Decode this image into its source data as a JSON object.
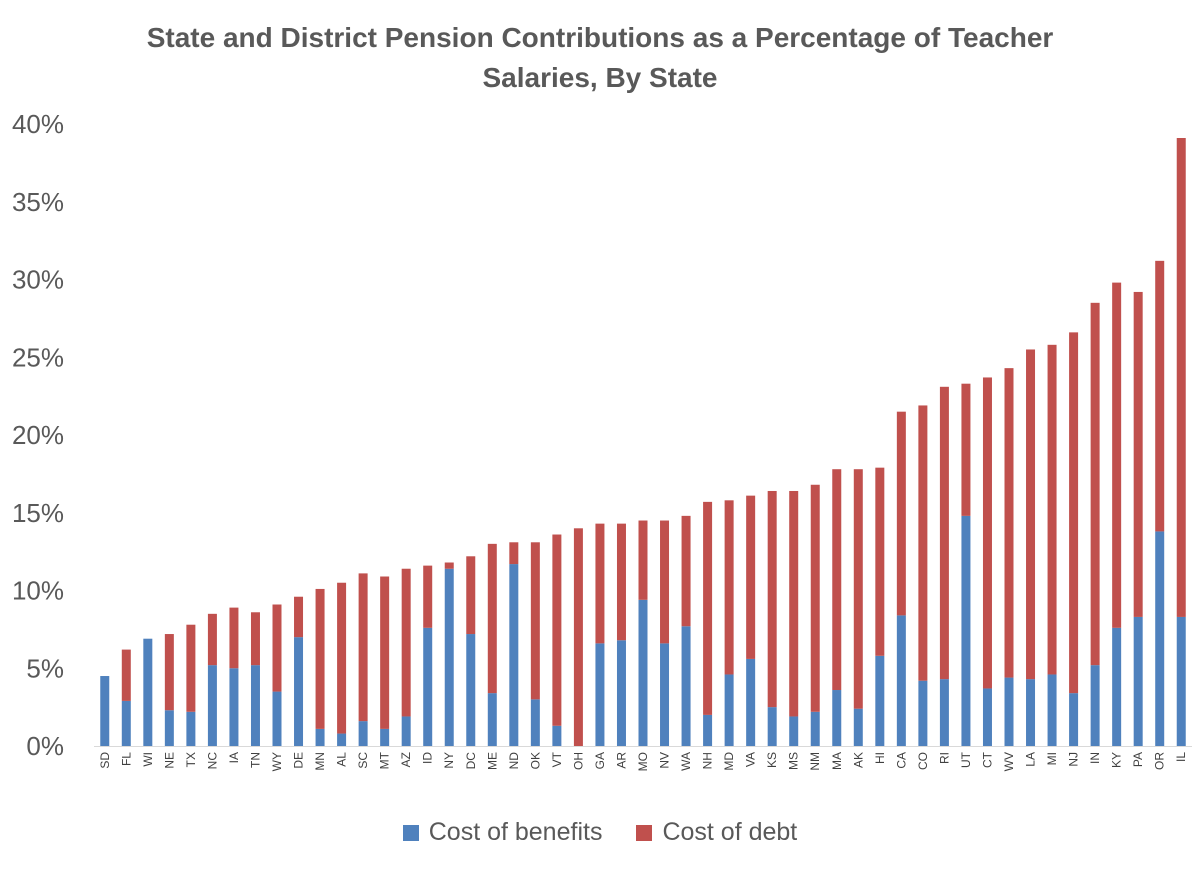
{
  "chart_data": {
    "type": "bar",
    "stacked": true,
    "title": "State and District Pension Contributions as a Percentage of Teacher Salaries, By State",
    "xlabel": "",
    "ylabel": "",
    "ylim": [
      0,
      40
    ],
    "yticks": [
      "0%",
      "5%",
      "10%",
      "15%",
      "20%",
      "25%",
      "30%",
      "35%",
      "40%"
    ],
    "grid": false,
    "legend_position": "bottom",
    "categories": [
      "SD",
      "FL",
      "WI",
      "NE",
      "TX",
      "NC",
      "IA",
      "TN",
      "WY",
      "DE",
      "MN",
      "AL",
      "SC",
      "MT",
      "AZ",
      "ID",
      "NY",
      "DC",
      "ME",
      "ND",
      "OK",
      "VT",
      "OH",
      "GA",
      "AR",
      "MO",
      "NV",
      "WA",
      "NH",
      "MD",
      "VA",
      "KS",
      "MS",
      "NM",
      "MA",
      "AK",
      "HI",
      "CA",
      "CO",
      "RI",
      "UT",
      "CT",
      "WV",
      "LA",
      "MI",
      "NJ",
      "IN",
      "KY",
      "PA",
      "OR",
      "IL"
    ],
    "series": [
      {
        "name": "Cost of benefits",
        "color": "#4F81BD",
        "values": [
          4.5,
          2.9,
          6.9,
          2.3,
          2.2,
          5.2,
          5.0,
          5.2,
          3.5,
          7.0,
          1.1,
          0.8,
          1.6,
          1.1,
          1.9,
          7.6,
          11.4,
          7.2,
          3.4,
          11.7,
          3.0,
          1.3,
          0.0,
          6.6,
          6.8,
          9.4,
          6.6,
          7.7,
          2.0,
          4.6,
          5.6,
          2.5,
          1.9,
          2.2,
          3.6,
          2.4,
          5.8,
          8.4,
          4.2,
          4.3,
          14.8,
          3.7,
          4.4,
          4.3,
          4.6,
          3.4,
          5.2,
          7.6,
          8.3,
          13.8,
          8.3
        ]
      },
      {
        "name": "Cost of debt",
        "color": "#C0504D",
        "values": [
          0.0,
          3.3,
          0.0,
          4.9,
          5.6,
          3.3,
          3.9,
          3.4,
          5.6,
          2.6,
          9.0,
          9.7,
          9.5,
          9.8,
          9.5,
          4.0,
          0.4,
          5.0,
          9.6,
          1.4,
          10.1,
          12.3,
          14.0,
          7.7,
          7.5,
          5.1,
          7.9,
          7.1,
          13.7,
          11.2,
          10.5,
          13.9,
          14.5,
          14.6,
          14.2,
          15.4,
          12.1,
          13.1,
          17.7,
          18.8,
          8.5,
          20.0,
          19.9,
          21.2,
          21.2,
          23.2,
          23.3,
          22.2,
          20.9,
          17.4,
          30.8
        ]
      }
    ]
  }
}
